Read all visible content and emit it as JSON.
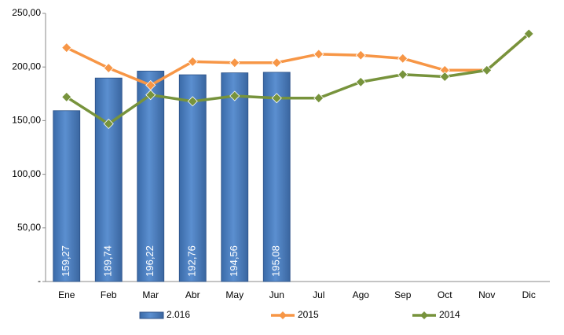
{
  "chart_data": {
    "type": "bar_line",
    "categories": [
      "Ene",
      "Feb",
      "Mar",
      "Abr",
      "May",
      "Jun",
      "Jul",
      "Ago",
      "Sep",
      "Oct",
      "Nov",
      "Dic"
    ],
    "series": [
      {
        "name": "2.016",
        "type": "bar",
        "color": "#4f81bd",
        "values": [
          159.27,
          189.74,
          196.22,
          192.76,
          194.56,
          195.08,
          null,
          null,
          null,
          null,
          null,
          null
        ],
        "value_labels": [
          "159,27",
          "189,74",
          "196,22",
          "192,76",
          "194,56",
          "195,08",
          null,
          null,
          null,
          null,
          null,
          null
        ]
      },
      {
        "name": "2015",
        "type": "line",
        "color": "#f79646",
        "values": [
          218,
          199,
          183,
          205,
          204,
          204,
          212,
          211,
          208,
          197,
          197,
          231
        ]
      },
      {
        "name": "2014",
        "type": "line",
        "color": "#77933c",
        "values": [
          172,
          147,
          174,
          168,
          173,
          171,
          171,
          186,
          193,
          191,
          197,
          231
        ]
      }
    ],
    "ylim": [
      0,
      250
    ],
    "yticks": [
      {
        "value": 0,
        "label": "-"
      },
      {
        "value": 50,
        "label": "50,00"
      },
      {
        "value": 100,
        "label": "100,00"
      },
      {
        "value": 150,
        "label": "150,00"
      },
      {
        "value": 200,
        "label": "200,00"
      },
      {
        "value": 250,
        "label": "250,00"
      }
    ],
    "legend": "bottom"
  }
}
